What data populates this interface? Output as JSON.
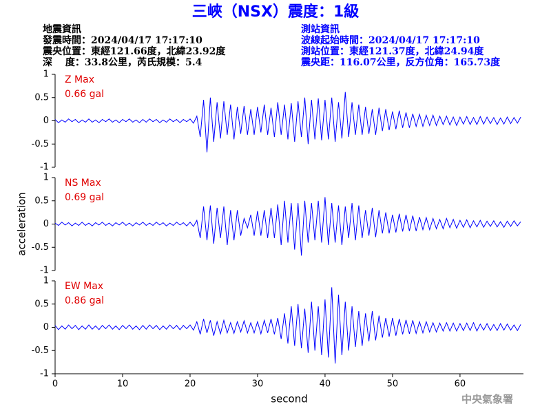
{
  "header": {
    "title": "三峽（NSX）震度：1級",
    "left": [
      "地震資訊",
      "發震時間：2024/04/17 17:17:10",
      "震央位置：東經121.66度，北緯23.92度",
      "深　 度：33.8公里，芮氏規模：5.4"
    ],
    "right": [
      "測站資訊",
      "波線起始時間：2024/04/17 17:17:10",
      "測站位置：東經121.37度，北緯24.94度",
      "震央距：116.07公里，反方位角：165.73度"
    ]
  },
  "footer": "中央氣象署",
  "chart_data": [
    {
      "type": "line",
      "label": "Z Max",
      "max_label": "0.66 gal",
      "color": "#0000ff",
      "xlim": [
        0,
        69.4
      ],
      "ylim": [
        -1,
        1
      ],
      "yticks": [
        1,
        0.5,
        0,
        -0.5,
        -1
      ],
      "x": [
        0,
        0.5,
        1,
        1.5,
        2,
        2.5,
        3,
        3.5,
        4,
        4.5,
        5,
        5.5,
        6,
        6.5,
        7,
        7.5,
        8,
        8.5,
        9,
        9.5,
        10,
        10.5,
        11,
        11.5,
        12,
        12.5,
        13,
        13.5,
        14,
        14.5,
        15,
        15.5,
        16,
        16.5,
        17,
        17.5,
        18,
        18.5,
        19,
        19.5,
        20,
        20.5,
        21,
        21.5,
        22,
        22.5,
        23,
        23.5,
        24,
        24.5,
        25,
        25.5,
        26,
        26.5,
        27,
        27.5,
        28,
        28.5,
        29,
        29.5,
        30,
        30.5,
        31,
        31.5,
        32,
        32.5,
        33,
        33.5,
        34,
        34.5,
        35,
        35.5,
        36,
        36.5,
        37,
        37.5,
        38,
        38.5,
        39,
        39.5,
        40,
        40.5,
        41,
        41.5,
        42,
        42.5,
        43,
        43.5,
        44,
        44.5,
        45,
        45.5,
        46,
        46.5,
        47,
        47.5,
        48,
        48.5,
        49,
        49.5,
        50,
        50.5,
        51,
        51.5,
        52,
        52.5,
        53,
        53.5,
        54,
        54.5,
        55,
        55.5,
        56,
        56.5,
        57,
        57.5,
        58,
        58.5,
        59,
        59.5,
        60,
        60.5,
        61,
        61.5,
        62,
        62.5,
        63,
        63.5,
        64,
        64.5,
        65,
        65.5,
        66,
        66.5,
        67,
        67.5,
        68,
        68.5,
        69
      ],
      "values": [
        0.03,
        -0.04,
        0.02,
        -0.03,
        0.04,
        -0.02,
        0.03,
        -0.04,
        0.02,
        -0.03,
        0.04,
        -0.03,
        0.02,
        -0.04,
        0.03,
        -0.02,
        0.04,
        -0.03,
        0.02,
        -0.04,
        0.03,
        -0.02,
        0.04,
        -0.03,
        0.02,
        -0.04,
        0.03,
        -0.03,
        0.04,
        -0.02,
        0.03,
        -0.04,
        0.02,
        -0.03,
        0.04,
        -0.02,
        0.03,
        -0.04,
        0.03,
        -0.02,
        0.04,
        -0.05,
        0.1,
        -0.35,
        0.45,
        -0.68,
        0.5,
        -0.45,
        0.4,
        -0.38,
        0.42,
        -0.3,
        0.35,
        -0.4,
        0.3,
        -0.28,
        0.32,
        -0.3,
        0.25,
        -0.3,
        0.3,
        -0.25,
        0.35,
        -0.3,
        0.28,
        -0.35,
        0.4,
        -0.3,
        0.35,
        -0.4,
        0.38,
        -0.45,
        0.42,
        -0.35,
        0.5,
        -0.5,
        0.45,
        -0.4,
        0.48,
        -0.42,
        0.45,
        -0.4,
        0.5,
        -0.45,
        0.4,
        -0.38,
        0.62,
        -0.35,
        0.4,
        -0.3,
        0.35,
        -0.3,
        0.3,
        -0.28,
        0.25,
        -0.3,
        0.28,
        -0.22,
        0.25,
        -0.2,
        0.2,
        -0.18,
        0.22,
        -0.15,
        0.18,
        -0.15,
        0.15,
        -0.12,
        0.14,
        -0.12,
        0.12,
        -0.1,
        0.12,
        -0.1,
        0.1,
        -0.08,
        0.1,
        -0.09,
        0.08,
        -0.1,
        0.08,
        -0.07,
        0.09,
        -0.08,
        0.07,
        -0.08,
        0.09,
        -0.07,
        0.08,
        -0.06,
        0.07,
        -0.08,
        0.06,
        -0.07,
        0.08,
        -0.06,
        0.07,
        -0.05,
        0.08
      ]
    },
    {
      "type": "line",
      "label": "NS Max",
      "max_label": "0.69 gal",
      "color": "#0000ff",
      "ylabel": "acceleration",
      "xlim": [
        0,
        69.4
      ],
      "ylim": [
        -1,
        1
      ],
      "yticks": [
        1,
        0.5,
        0,
        -0.5,
        -1
      ],
      "x": [
        0,
        0.5,
        1,
        1.5,
        2,
        2.5,
        3,
        3.5,
        4,
        4.5,
        5,
        5.5,
        6,
        6.5,
        7,
        7.5,
        8,
        8.5,
        9,
        9.5,
        10,
        10.5,
        11,
        11.5,
        12,
        12.5,
        13,
        13.5,
        14,
        14.5,
        15,
        15.5,
        16,
        16.5,
        17,
        17.5,
        18,
        18.5,
        19,
        19.5,
        20,
        20.5,
        21,
        21.5,
        22,
        22.5,
        23,
        23.5,
        24,
        24.5,
        25,
        25.5,
        26,
        26.5,
        27,
        27.5,
        28,
        28.5,
        29,
        29.5,
        30,
        30.5,
        31,
        31.5,
        32,
        32.5,
        33,
        33.5,
        34,
        34.5,
        35,
        35.5,
        36,
        36.5,
        37,
        37.5,
        38,
        38.5,
        39,
        39.5,
        40,
        40.5,
        41,
        41.5,
        42,
        42.5,
        43,
        43.5,
        44,
        44.5,
        45,
        45.5,
        46,
        46.5,
        47,
        47.5,
        48,
        48.5,
        49,
        49.5,
        50,
        50.5,
        51,
        51.5,
        52,
        52.5,
        53,
        53.5,
        54,
        54.5,
        55,
        55.5,
        56,
        56.5,
        57,
        57.5,
        58,
        58.5,
        59,
        59.5,
        60,
        60.5,
        61,
        61.5,
        62,
        62.5,
        63,
        63.5,
        64,
        64.5,
        65,
        65.5,
        66,
        66.5,
        67,
        67.5,
        68,
        68.5,
        69
      ],
      "values": [
        0.02,
        -0.03,
        0.04,
        -0.02,
        0.03,
        -0.04,
        0.02,
        -0.03,
        0.04,
        -0.03,
        0.02,
        -0.04,
        0.03,
        -0.02,
        0.04,
        -0.03,
        0.02,
        -0.04,
        0.03,
        -0.02,
        0.04,
        -0.03,
        0.02,
        -0.04,
        0.03,
        -0.02,
        0.04,
        -0.03,
        0.02,
        -0.03,
        0.04,
        -0.02,
        0.03,
        -0.04,
        0.02,
        -0.03,
        0.04,
        -0.02,
        0.03,
        -0.04,
        0.04,
        -0.05,
        0.08,
        -0.3,
        0.38,
        -0.35,
        0.4,
        -0.42,
        0.35,
        -0.3,
        0.38,
        -0.45,
        0.3,
        -0.35,
        0.3,
        -0.25,
        0.12,
        -0.08,
        0.2,
        -0.25,
        0.28,
        -0.25,
        0.3,
        -0.3,
        0.35,
        -0.3,
        0.42,
        -0.45,
        0.5,
        -0.4,
        0.45,
        -0.55,
        0.45,
        -0.68,
        0.5,
        -0.4,
        0.45,
        -0.35,
        0.5,
        -0.4,
        0.58,
        -0.45,
        0.45,
        -0.4,
        0.4,
        -0.45,
        0.38,
        -0.3,
        0.45,
        -0.35,
        0.4,
        -0.3,
        0.3,
        -0.25,
        0.35,
        -0.28,
        0.3,
        -0.2,
        0.25,
        -0.2,
        0.2,
        -0.18,
        0.22,
        -0.16,
        0.2,
        -0.15,
        0.18,
        -0.15,
        0.15,
        -0.12,
        0.14,
        -0.12,
        0.12,
        -0.1,
        0.1,
        -0.1,
        0.12,
        -0.08,
        0.1,
        -0.09,
        0.08,
        -0.07,
        0.09,
        -0.08,
        0.07,
        -0.06,
        0.08,
        -0.07,
        0.06,
        -0.05,
        0.07,
        -0.06,
        0.05,
        -0.07,
        0.06,
        -0.05,
        0.07,
        -0.04,
        0.05
      ]
    },
    {
      "type": "line",
      "label": "EW Max",
      "max_label": "0.86 gal",
      "color": "#0000ff",
      "xlabel": "second",
      "xlim": [
        0,
        69.4
      ],
      "ylim": [
        -1,
        1
      ],
      "yticks": [
        1,
        0.5,
        0,
        -0.5,
        -1
      ],
      "xticks": [
        0,
        10,
        20,
        30,
        40,
        50,
        60
      ],
      "x": [
        0,
        0.5,
        1,
        1.5,
        2,
        2.5,
        3,
        3.5,
        4,
        4.5,
        5,
        5.5,
        6,
        6.5,
        7,
        7.5,
        8,
        8.5,
        9,
        9.5,
        10,
        10.5,
        11,
        11.5,
        12,
        12.5,
        13,
        13.5,
        14,
        14.5,
        15,
        15.5,
        16,
        16.5,
        17,
        17.5,
        18,
        18.5,
        19,
        19.5,
        20,
        20.5,
        21,
        21.5,
        22,
        22.5,
        23,
        23.5,
        24,
        24.5,
        25,
        25.5,
        26,
        26.5,
        27,
        27.5,
        28,
        28.5,
        29,
        29.5,
        30,
        30.5,
        31,
        31.5,
        32,
        32.5,
        33,
        33.5,
        34,
        34.5,
        35,
        35.5,
        36,
        36.5,
        37,
        37.5,
        38,
        38.5,
        39,
        39.5,
        40,
        40.5,
        41,
        41.5,
        42,
        42.5,
        43,
        43.5,
        44,
        44.5,
        45,
        45.5,
        46,
        46.5,
        47,
        47.5,
        48,
        48.5,
        49,
        49.5,
        50,
        50.5,
        51,
        51.5,
        52,
        52.5,
        53,
        53.5,
        54,
        54.5,
        55,
        55.5,
        56,
        56.5,
        57,
        57.5,
        58,
        58.5,
        59,
        59.5,
        60,
        60.5,
        61,
        61.5,
        62,
        62.5,
        63,
        63.5,
        64,
        64.5,
        65,
        65.5,
        66,
        66.5,
        67,
        67.5,
        68,
        68.5,
        69
      ],
      "values": [
        0.04,
        -0.05,
        0.03,
        -0.04,
        0.05,
        -0.03,
        0.04,
        -0.05,
        0.03,
        -0.04,
        0.05,
        -0.04,
        0.03,
        -0.05,
        0.04,
        -0.03,
        0.05,
        -0.04,
        0.03,
        -0.05,
        0.04,
        -0.03,
        0.05,
        -0.04,
        0.03,
        -0.05,
        0.04,
        -0.04,
        0.05,
        -0.03,
        0.04,
        -0.05,
        0.03,
        -0.04,
        0.05,
        -0.03,
        0.04,
        -0.05,
        0.04,
        -0.03,
        0.05,
        -0.06,
        0.12,
        -0.15,
        0.18,
        -0.12,
        0.15,
        -0.18,
        0.12,
        -0.14,
        0.15,
        -0.12,
        0.1,
        -0.13,
        0.12,
        -0.1,
        0.14,
        -0.12,
        0.1,
        -0.12,
        0.12,
        -0.14,
        0.15,
        -0.12,
        0.18,
        -0.15,
        0.2,
        -0.25,
        0.3,
        -0.35,
        0.45,
        -0.4,
        0.5,
        -0.45,
        0.4,
        -0.55,
        0.55,
        -0.5,
        0.45,
        -0.6,
        0.6,
        -0.65,
        0.86,
        -0.78,
        0.7,
        -0.6,
        0.55,
        -0.5,
        0.45,
        -0.42,
        0.35,
        -0.4,
        0.3,
        -0.3,
        0.35,
        -0.28,
        0.25,
        -0.22,
        0.2,
        -0.2,
        0.2,
        -0.18,
        0.18,
        -0.15,
        0.16,
        -0.14,
        0.15,
        -0.13,
        0.12,
        -0.12,
        0.12,
        -0.1,
        0.1,
        -0.1,
        0.09,
        -0.08,
        0.1,
        -0.08,
        0.09,
        -0.08,
        0.08,
        -0.07,
        0.09,
        -0.07,
        0.1,
        -0.08,
        0.07,
        -0.06,
        0.08,
        -0.07,
        0.06,
        -0.07,
        0.08,
        -0.06,
        0.07,
        -0.06,
        0.05,
        -0.07,
        0.06
      ]
    }
  ]
}
